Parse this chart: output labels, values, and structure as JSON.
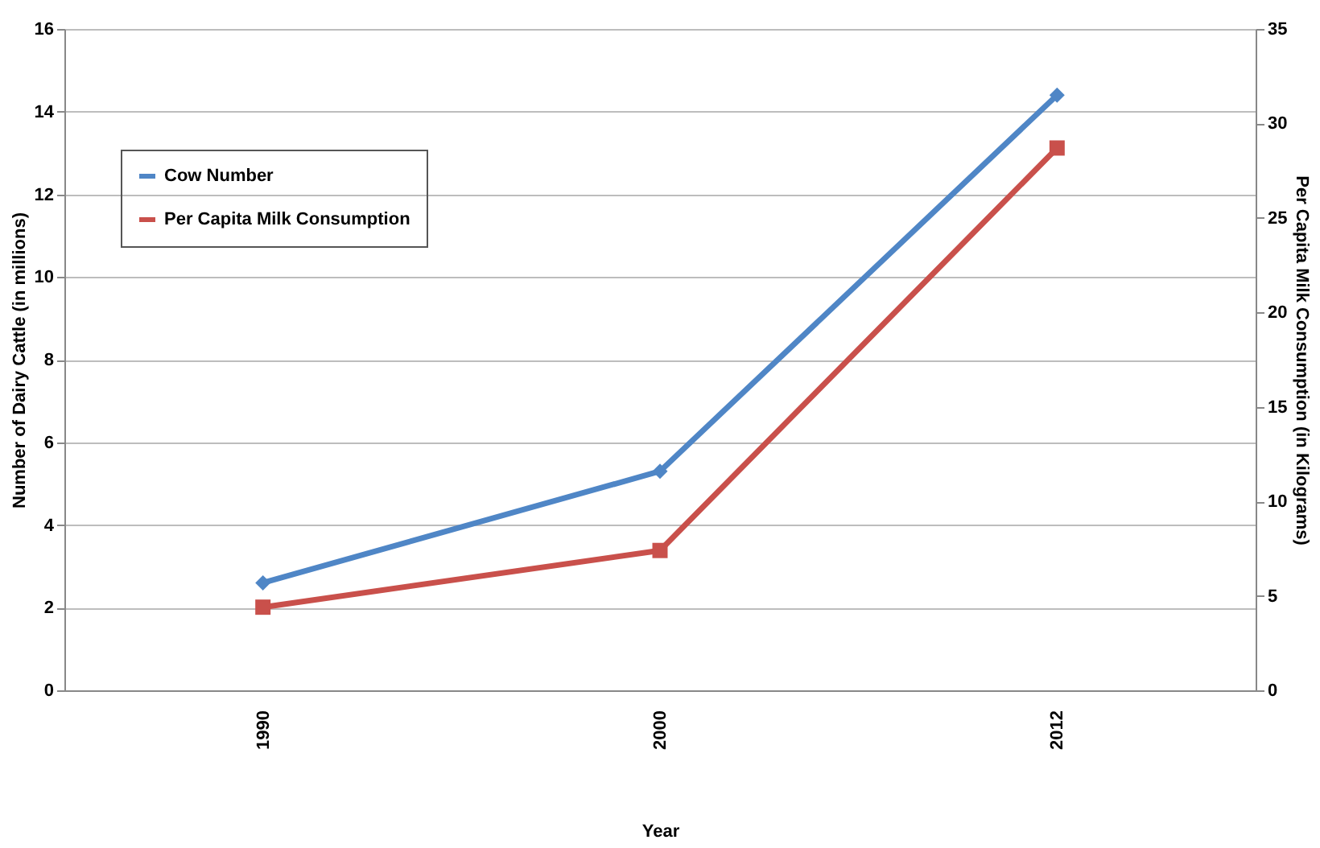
{
  "chart_data": {
    "type": "line",
    "xlabel": "Year",
    "ylabel": "Number of Dairy Cattle (in millions)",
    "y2label": "Per Capita Milk Consumption (in Kilograms)",
    "categories": [
      "1990",
      "2000",
      "2012"
    ],
    "series": [
      {
        "name": "Cow Number",
        "color": "#4f86c6",
        "values": [
          2.6,
          5.3,
          14.4
        ],
        "marker": "diamond"
      },
      {
        "name": "Per Capita Milk Consumption",
        "color": "#c9504b",
        "values": [
          4.4,
          7.4,
          28.7
        ],
        "marker": "square",
        "axis": "y2"
      }
    ],
    "ylim": [
      0,
      16
    ],
    "yticks": [
      0,
      2,
      4,
      6,
      8,
      10,
      12,
      14,
      16
    ],
    "y2lim": [
      0,
      35
    ],
    "y2ticks": [
      0,
      5,
      10,
      15,
      20,
      25,
      30,
      35
    ],
    "grid": "y",
    "legend": "top left",
    "line_style": "solid"
  }
}
